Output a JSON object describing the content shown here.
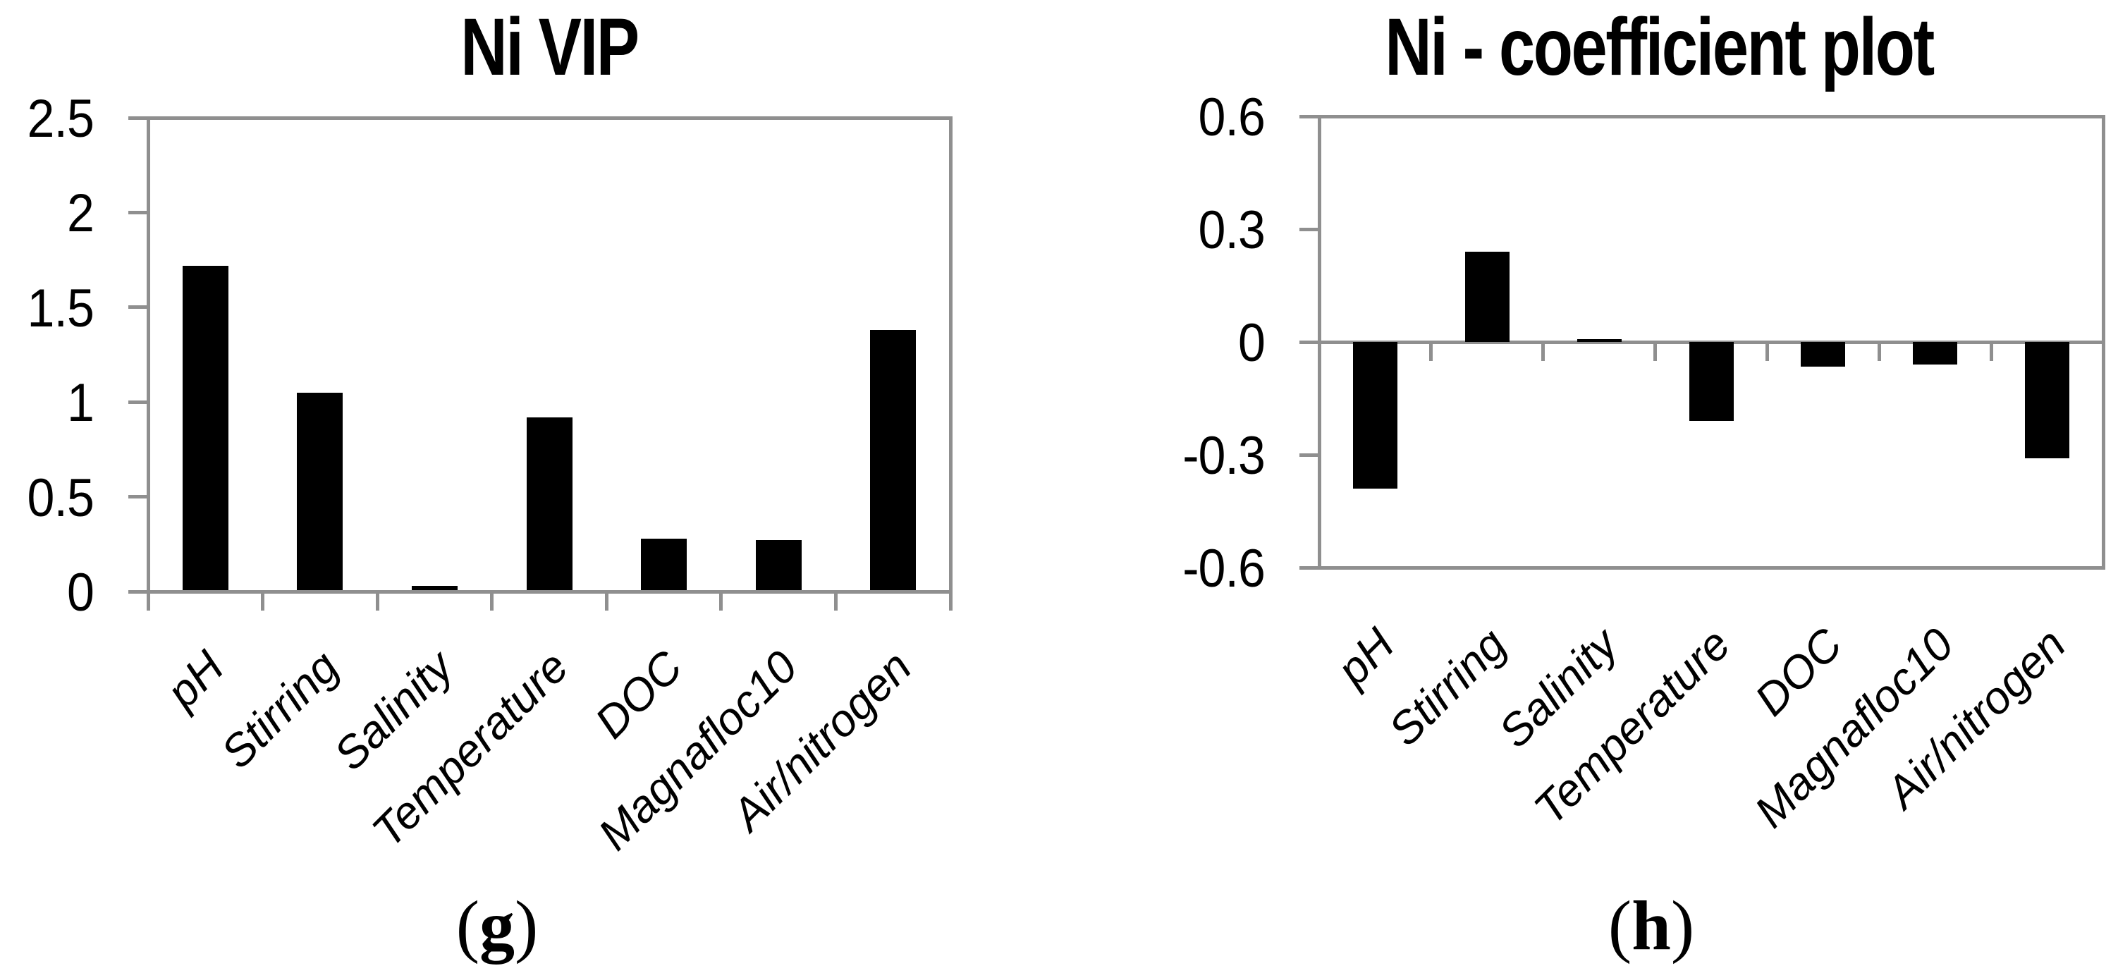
{
  "page": {
    "background": "#ffffff"
  },
  "chart_data": [
    {
      "panel": "g",
      "type": "bar",
      "title": "Ni VIP",
      "caption": {
        "open": "(",
        "letter": "g",
        "close": ")"
      },
      "categories": [
        "pH",
        "Stirring",
        "Salinity",
        "Temperature",
        "DOC",
        "Magnafloc10",
        "Air/nitrogen"
      ],
      "values": [
        1.72,
        1.05,
        0.03,
        0.92,
        0.28,
        0.27,
        1.38
      ],
      "xlabel": "",
      "ylabel": "",
      "ylim": [
        0,
        2.5
      ],
      "yticks": [
        0,
        0.5,
        1,
        1.5,
        2,
        2.5
      ],
      "ytick_labels": [
        "0",
        "0.5",
        "1",
        "1.5",
        "2",
        "2.5"
      ],
      "tick_label_rotation_deg": -45,
      "grid": false,
      "legend": "none",
      "bar_color": "#000000",
      "axis_color": "#8f8f8f",
      "text_color": "#000000"
    },
    {
      "panel": "h",
      "type": "bar",
      "title": "Ni - coefficient plot",
      "caption": {
        "open": "(",
        "letter": "h",
        "close": ")"
      },
      "categories": [
        "pH",
        "Stirring",
        "Salinity",
        "Temperature",
        "DOC",
        "Magnafloc10",
        "Air/nitrogen"
      ],
      "values": [
        -0.39,
        0.24,
        0.008,
        -0.21,
        -0.065,
        -0.06,
        -0.31
      ],
      "xlabel": "",
      "ylabel": "",
      "ylim": [
        -0.6,
        0.6
      ],
      "yticks": [
        -0.6,
        -0.3,
        0,
        0.3,
        0.6
      ],
      "ytick_labels": [
        "-0.6",
        "-0.3",
        "0",
        "0.3",
        "0.6"
      ],
      "tick_label_rotation_deg": -45,
      "grid": false,
      "legend": "none",
      "bar_color": "#000000",
      "axis_color": "#8f8f8f",
      "text_color": "#000000"
    }
  ]
}
